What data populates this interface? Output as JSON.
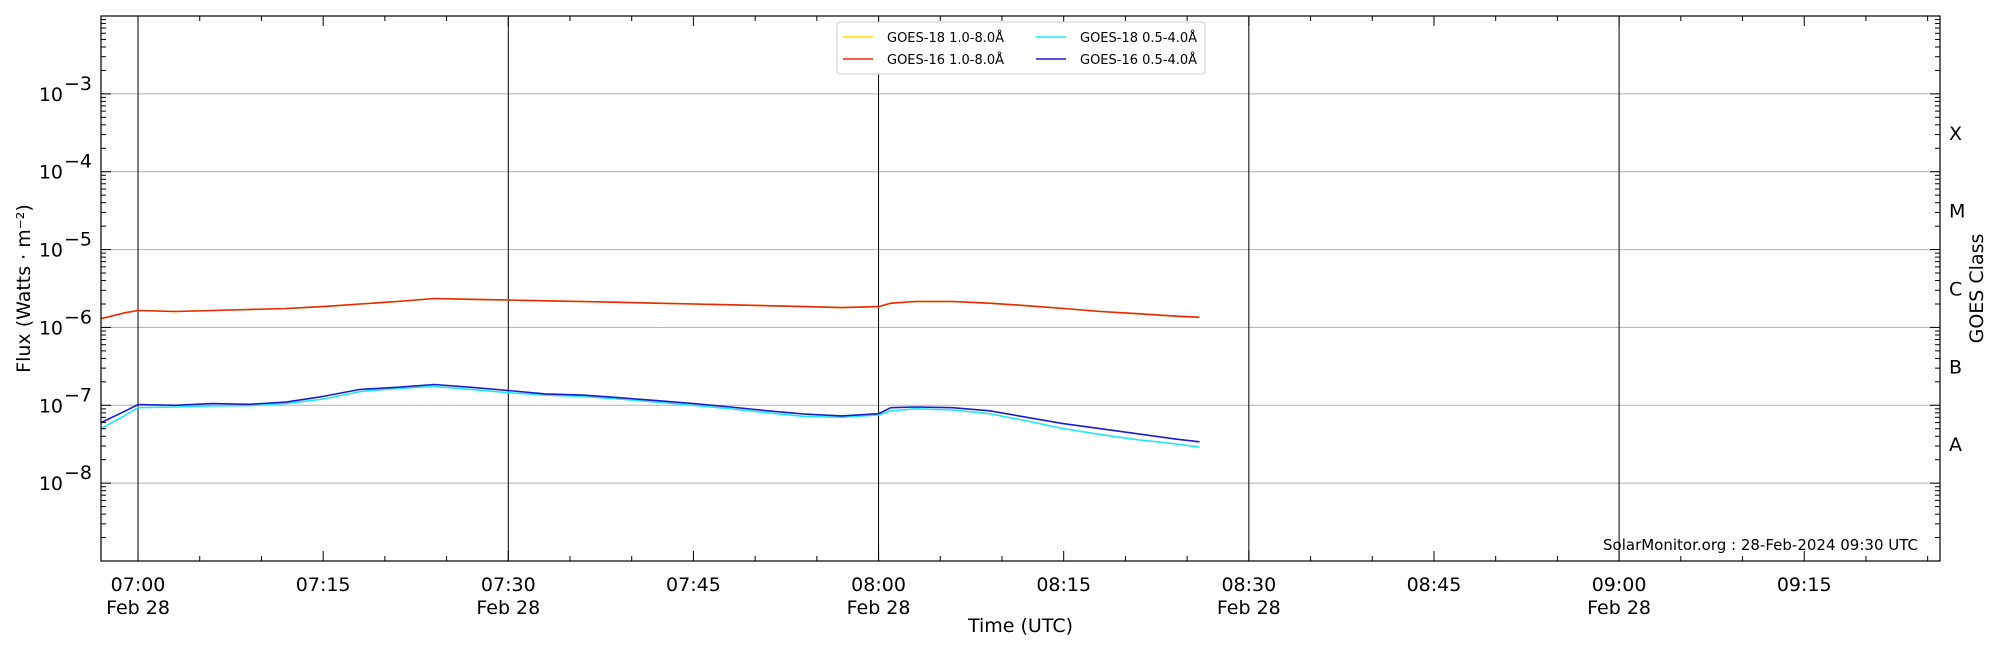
{
  "chart_data": {
    "type": "line",
    "xlabel": "Time (UTC)",
    "ylabel": "Flux (Watts · m⁻²)",
    "right_ylabel": "GOES Class",
    "credit": "SolarMonitor.org : 28-Feb-2024 09:30 UTC",
    "y_scale": "log",
    "ylim": [
      1e-09,
      0.01
    ],
    "xlim": [
      "2024-02-28 06:57",
      "2024-02-28 09:26"
    ],
    "grid": "horizontal at decades, vertical at half-hours",
    "legend_position": "top-center",
    "x_ticks": [
      {
        "t": "2024-02-28 07:00",
        "label": "07:00",
        "sub": "Feb 28"
      },
      {
        "t": "2024-02-28 07:15",
        "label": "07:15",
        "sub": ""
      },
      {
        "t": "2024-02-28 07:30",
        "label": "07:30",
        "sub": "Feb 28"
      },
      {
        "t": "2024-02-28 07:45",
        "label": "07:45",
        "sub": ""
      },
      {
        "t": "2024-02-28 08:00",
        "label": "08:00",
        "sub": "Feb 28"
      },
      {
        "t": "2024-02-28 08:15",
        "label": "08:15",
        "sub": ""
      },
      {
        "t": "2024-02-28 08:30",
        "label": "08:30",
        "sub": "Feb 28"
      },
      {
        "t": "2024-02-28 08:45",
        "label": "08:45",
        "sub": ""
      },
      {
        "t": "2024-02-28 09:00",
        "label": "09:00",
        "sub": "Feb 28"
      },
      {
        "t": "2024-02-28 09:15",
        "label": "09:15",
        "sub": ""
      }
    ],
    "y_ticks": [
      {
        "value": 0.001,
        "label": "10",
        "exp": "−3"
      },
      {
        "value": 0.0001,
        "label": "10",
        "exp": "−4"
      },
      {
        "value": 1e-05,
        "label": "10",
        "exp": "−5"
      },
      {
        "value": 1e-06,
        "label": "10",
        "exp": "−6"
      },
      {
        "value": 1e-07,
        "label": "10",
        "exp": "−7"
      },
      {
        "value": 1e-08,
        "label": "10",
        "exp": "−8"
      }
    ],
    "goes_classes": [
      {
        "label": "X",
        "value": 0.000316
      },
      {
        "label": "M",
        "value": 3.16e-05
      },
      {
        "label": "C",
        "value": 3.16e-06
      },
      {
        "label": "B",
        "value": 3.16e-07
      },
      {
        "label": "A",
        "value": 3.16e-08
      }
    ],
    "x": [
      "2024-02-28 06:57",
      "2024-02-28 06:59",
      "2024-02-28 07:00",
      "2024-02-28 07:03",
      "2024-02-28 07:06",
      "2024-02-28 07:09",
      "2024-02-28 07:12",
      "2024-02-28 07:15",
      "2024-02-28 07:18",
      "2024-02-28 07:21",
      "2024-02-28 07:24",
      "2024-02-28 07:27",
      "2024-02-28 07:30",
      "2024-02-28 07:33",
      "2024-02-28 07:36",
      "2024-02-28 07:39",
      "2024-02-28 07:42",
      "2024-02-28 07:45",
      "2024-02-28 07:48",
      "2024-02-28 07:51",
      "2024-02-28 07:54",
      "2024-02-28 07:57",
      "2024-02-28 08:00",
      "2024-02-28 08:01",
      "2024-02-28 08:03",
      "2024-02-28 08:06",
      "2024-02-28 08:09",
      "2024-02-28 08:12",
      "2024-02-28 08:15",
      "2024-02-28 08:18",
      "2024-02-28 08:21",
      "2024-02-28 08:24",
      "2024-02-28 08:26"
    ],
    "series": [
      {
        "name": "GOES-18 1.0-8.0Å",
        "color": "#ffd700",
        "values": [
          1.3e-06,
          1.55e-06,
          1.65e-06,
          1.6e-06,
          1.65e-06,
          1.7e-06,
          1.75e-06,
          1.85e-06,
          2e-06,
          2.15e-06,
          2.35e-06,
          2.3e-06,
          2.25e-06,
          2.2e-06,
          2.15e-06,
          2.1e-06,
          2.05e-06,
          2e-06,
          1.95e-06,
          1.9e-06,
          1.85e-06,
          1.8e-06,
          1.85e-06,
          2.05e-06,
          2.15e-06,
          2.15e-06,
          2.05e-06,
          1.9e-06,
          1.75e-06,
          1.6e-06,
          1.5e-06,
          1.4e-06,
          1.35e-06
        ]
      },
      {
        "name": "GOES-16 1.0-8.0Å",
        "color": "#e8280b",
        "values": [
          1.3e-06,
          1.55e-06,
          1.65e-06,
          1.6e-06,
          1.65e-06,
          1.7e-06,
          1.75e-06,
          1.85e-06,
          2e-06,
          2.15e-06,
          2.35e-06,
          2.3e-06,
          2.25e-06,
          2.2e-06,
          2.15e-06,
          2.1e-06,
          2.05e-06,
          2e-06,
          1.95e-06,
          1.9e-06,
          1.85e-06,
          1.8e-06,
          1.85e-06,
          2.05e-06,
          2.15e-06,
          2.15e-06,
          2.05e-06,
          1.9e-06,
          1.75e-06,
          1.6e-06,
          1.5e-06,
          1.4e-06,
          1.35e-06
        ]
      },
      {
        "name": "GOES-18 0.5-4.0Å",
        "color": "#22e8f0",
        "values": [
          5e-08,
          7.5e-08,
          9.3e-08,
          9.5e-08,
          9.8e-08,
          9.9e-08,
          1.05e-07,
          1.2e-07,
          1.5e-07,
          1.65e-07,
          1.75e-07,
          1.6e-07,
          1.45e-07,
          1.35e-07,
          1.3e-07,
          1.2e-07,
          1.1e-07,
          1e-07,
          9e-08,
          8e-08,
          7.2e-08,
          7e-08,
          7.5e-08,
          8.5e-08,
          9e-08,
          8.7e-08,
          7.8e-08,
          6.3e-08,
          5e-08,
          4.2e-08,
          3.6e-08,
          3.2e-08,
          2.9e-08
        ]
      },
      {
        "name": "GOES-16 0.5-4.0Å",
        "color": "#1c1ccc",
        "values": [
          6e-08,
          8.5e-08,
          1.02e-07,
          1e-07,
          1.05e-07,
          1.03e-07,
          1.1e-07,
          1.3e-07,
          1.6e-07,
          1.7e-07,
          1.85e-07,
          1.7e-07,
          1.55e-07,
          1.4e-07,
          1.35e-07,
          1.25e-07,
          1.15e-07,
          1.05e-07,
          9.5e-08,
          8.5e-08,
          7.7e-08,
          7.3e-08,
          7.8e-08,
          9.3e-08,
          9.5e-08,
          9.3e-08,
          8.5e-08,
          7e-08,
          5.8e-08,
          5e-08,
          4.3e-08,
          3.7e-08,
          3.4e-08
        ]
      }
    ]
  }
}
